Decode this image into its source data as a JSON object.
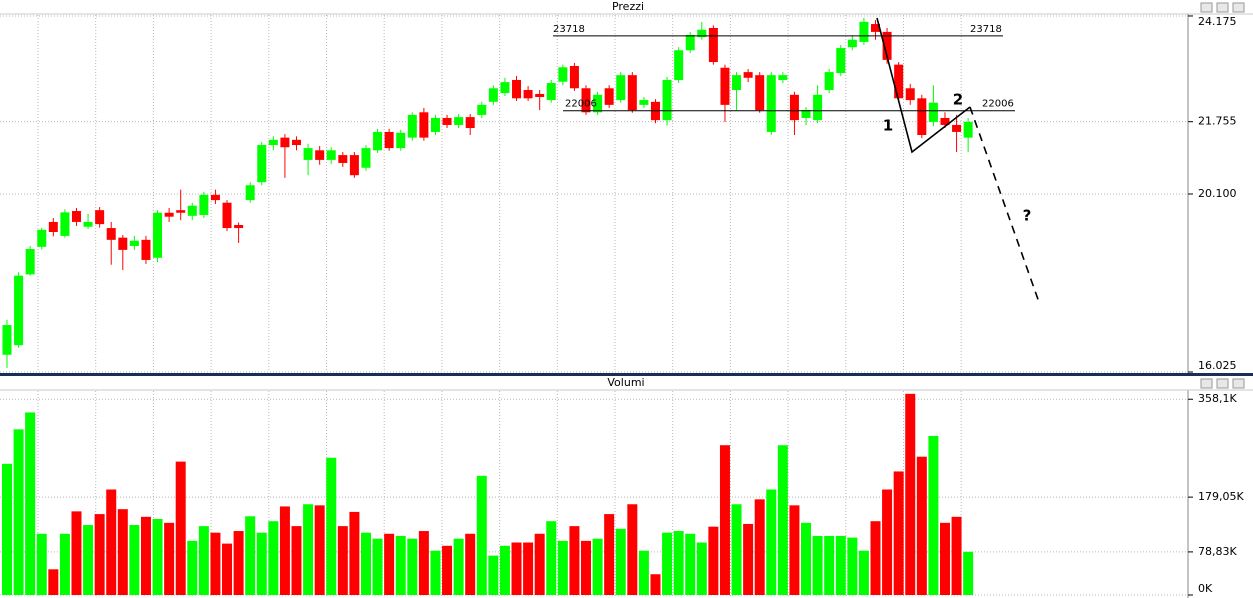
{
  "chart_data": [
    {
      "type": "candlestick",
      "title": "Prezzi",
      "up_color": "#00ff00",
      "down_color": "#ff0000",
      "grid": true,
      "ylim": [
        16025,
        24220
      ],
      "yticks": [
        {
          "value": 24175,
          "label": "24.175"
        },
        {
          "value": 21755,
          "label": "21.755"
        },
        {
          "value": 20100,
          "label": "20.100"
        },
        {
          "value": 16025,
          "label": "16.025"
        }
      ],
      "levels": [
        23718,
        22006
      ],
      "annotations": [
        "1",
        "2",
        "?"
      ],
      "open": [
        16420,
        16640,
        18260,
        18890,
        19460,
        19140,
        19710,
        19350,
        19730,
        19320,
        19100,
        18910,
        19050,
        18640,
        19670,
        19730,
        19600,
        19620,
        20080,
        19900,
        19390,
        19960,
        20370,
        21220,
        21390,
        21340,
        20880,
        21100,
        20880,
        20990,
        20990,
        20700,
        21100,
        21520,
        21150,
        21390,
        21970,
        21520,
        21840,
        21680,
        21860,
        21910,
        22210,
        22410,
        22710,
        22480,
        22390,
        22250,
        22670,
        23030,
        22520,
        21970,
        22520,
        22250,
        22820,
        22140,
        22210,
        21790,
        22710,
        23390,
        23690,
        23900,
        22990,
        22480,
        22890,
        22820,
        21520,
        22710,
        22370,
        21840,
        21790,
        22480,
        22870,
        23460,
        23580,
        23990,
        23810,
        23060,
        22520,
        22290,
        21750,
        21840,
        21680,
        21390
      ],
      "high": [
        17220,
        18310,
        18910,
        19330,
        19550,
        19750,
        19780,
        19650,
        19800,
        19460,
        19160,
        19140,
        19140,
        19730,
        19780,
        20200,
        19900,
        20150,
        20200,
        19960,
        19450,
        20370,
        21290,
        21420,
        21470,
        21420,
        21250,
        21200,
        21170,
        21060,
        21060,
        21220,
        21590,
        21590,
        21570,
        21970,
        22070,
        21910,
        21910,
        21930,
        21930,
        22210,
        22590,
        22760,
        22800,
        22570,
        22480,
        22710,
        23060,
        23100,
        22590,
        22440,
        22590,
        22890,
        22890,
        22320,
        22270,
        22780,
        23460,
        23810,
        24040,
        23960,
        23060,
        22890,
        22960,
        22890,
        22890,
        22890,
        22440,
        22090,
        22590,
        22960,
        23510,
        23740,
        24130,
        24080,
        23900,
        23120,
        22620,
        22370,
        22590,
        21970,
        21910,
        21840
      ],
      "low": [
        16120,
        16580,
        18230,
        18830,
        19130,
        19100,
        19370,
        19300,
        19330,
        18480,
        18360,
        18820,
        18500,
        18540,
        19460,
        19500,
        19500,
        19550,
        19870,
        19250,
        18980,
        19900,
        20300,
        21100,
        20470,
        21100,
        20530,
        20770,
        20790,
        20720,
        20470,
        20630,
        21040,
        21090,
        21090,
        21320,
        21320,
        21450,
        21610,
        21610,
        21450,
        21840,
        22140,
        22340,
        22230,
        22230,
        22020,
        22190,
        22590,
        22460,
        21910,
        21910,
        22070,
        22190,
        21960,
        22070,
        21720,
        21670,
        22640,
        23330,
        23630,
        23060,
        21750,
        22020,
        22660,
        21960,
        21450,
        22640,
        21450,
        21680,
        21720,
        22410,
        22800,
        23390,
        23510,
        23630,
        23080,
        22210,
        22140,
        21380,
        21650,
        21610,
        21060,
        21060
      ],
      "close": [
        17100,
        18230,
        18840,
        19280,
        19230,
        19680,
        19460,
        19460,
        19410,
        19050,
        18820,
        19030,
        18590,
        19670,
        19580,
        19670,
        19830,
        20080,
        19960,
        19320,
        19320,
        20300,
        21220,
        21340,
        21170,
        21220,
        21150,
        20880,
        21100,
        20810,
        20530,
        21150,
        21520,
        21150,
        21500,
        21910,
        21390,
        21840,
        21680,
        21860,
        21610,
        22140,
        22520,
        22660,
        22290,
        22290,
        22320,
        22640,
        23000,
        22520,
        21970,
        22370,
        22140,
        22820,
        22020,
        22250,
        21790,
        22710,
        23390,
        23740,
        23860,
        23120,
        22140,
        22820,
        22760,
        22020,
        22820,
        22820,
        21790,
        22020,
        22370,
        22890,
        23440,
        23630,
        24040,
        23810,
        23170,
        22290,
        22250,
        21450,
        22190,
        21680,
        21520,
        21750
      ]
    },
    {
      "type": "bar",
      "title": "Volumi",
      "grid": true,
      "ylim": [
        0,
        375000
      ],
      "yticks": [
        {
          "value": 358100,
          "label": "358,1K"
        },
        {
          "value": 179050,
          "label": "179,05K"
        },
        {
          "value": 78830,
          "label": "78,83K"
        },
        {
          "value": 0,
          "label": "0K"
        }
      ],
      "values": [
        240000,
        303000,
        334000,
        112000,
        47000,
        112000,
        153000,
        128000,
        148000,
        193000,
        157000,
        128000,
        143000,
        139000,
        132000,
        244000,
        99000,
        126000,
        114000,
        94000,
        117000,
        144000,
        114000,
        135000,
        162000,
        126000,
        166000,
        164000,
        251000,
        126000,
        152000,
        114000,
        103000,
        112000,
        108000,
        103000,
        117000,
        81000,
        90000,
        103000,
        112000,
        218000,
        72000,
        90000,
        96000,
        96000,
        112000,
        135000,
        99000,
        126000,
        99000,
        103000,
        148000,
        121000,
        166000,
        81000,
        38000,
        114000,
        117000,
        112000,
        96000,
        125000,
        274000,
        166000,
        130000,
        175000,
        193000,
        274000,
        164000,
        132000,
        108000,
        108000,
        108000,
        105000,
        81000,
        135000,
        193000,
        226000,
        368000,
        253000,
        291000,
        132000,
        143000,
        79000
      ]
    }
  ]
}
